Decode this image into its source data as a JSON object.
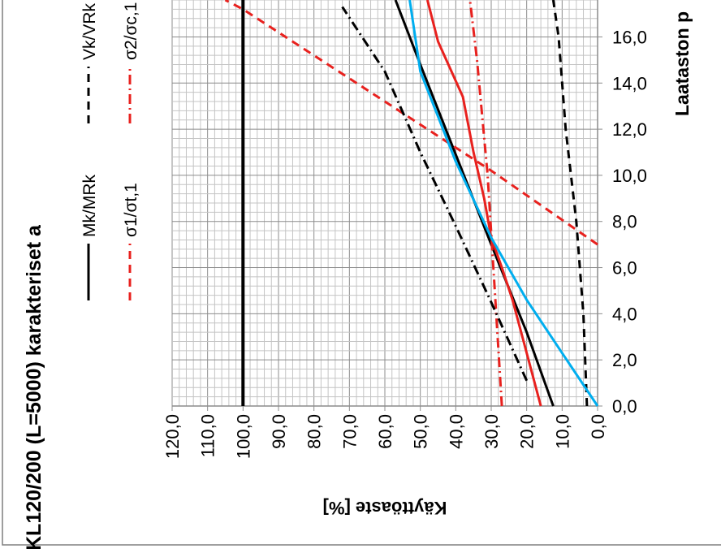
{
  "chart_data": {
    "type": "line",
    "orientation": "rotated-90-clockwise",
    "title": "KL120/200 (L=5000) karakteriset a",
    "xlabel": "Käyttöaste [%]",
    "ylabel": "Laataston p",
    "xlim": [
      0,
      120
    ],
    "ylim": [
      0,
      17.6
    ],
    "x_ticks": [
      "0,0",
      "10,0",
      "20,0",
      "30,0",
      "40,0",
      "50,0",
      "60,0",
      "70,0",
      "80,0",
      "90,0",
      "100,0",
      "110,0",
      "120,0"
    ],
    "y_ticks": [
      "0,0",
      "2,0",
      "4,0",
      "6,0",
      "8,0",
      "10,0",
      "12,0",
      "14,0",
      "16,0"
    ],
    "x_minor_step": 2,
    "y_minor_step": 0.4,
    "grid": true,
    "legend_position": "left",
    "series": [
      {
        "name": "Mk/MRk",
        "color": "#000000",
        "dash": "solid",
        "points": [
          [
            12.5,
            0
          ],
          [
            20,
            3.2
          ],
          [
            30,
            7
          ],
          [
            40,
            10.9
          ],
          [
            50,
            14.8
          ],
          [
            57,
            17.6
          ]
        ]
      },
      {
        "name": "Vk/VRk",
        "color": "#000000",
        "dash": "dash",
        "points": [
          [
            3,
            0
          ],
          [
            4,
            4
          ],
          [
            6,
            8
          ],
          [
            9,
            12
          ],
          [
            11,
            16
          ],
          [
            12.5,
            17.6
          ]
        ]
      },
      {
        "name": "σ1/σt,1",
        "color": "#e8211e",
        "dash": "dash",
        "points": [
          [
            0,
            7
          ],
          [
            30,
            10.2
          ],
          [
            60,
            13.2
          ],
          [
            100,
            17.2
          ],
          [
            105,
            17.6
          ]
        ]
      },
      {
        "name": "σ2/σc,1",
        "color": "#e8211e",
        "dash": "dashdot",
        "points": [
          [
            27,
            0
          ],
          [
            29,
            5
          ],
          [
            31,
            10
          ],
          [
            34,
            15
          ],
          [
            36,
            17.6
          ]
        ]
      },
      {
        "name": "",
        "color": "#000000",
        "dash": "dashdot",
        "points": [
          [
            20,
            1.1
          ],
          [
            30,
            4.5
          ],
          [
            40,
            7.8
          ],
          [
            50,
            11
          ],
          [
            60,
            14.5
          ],
          [
            72,
            17.3
          ]
        ]
      },
      {
        "name": "",
        "color": "#e8211e",
        "dash": "solid",
        "points": [
          [
            16,
            0
          ],
          [
            20,
            2.3
          ],
          [
            24,
            4.6
          ],
          [
            27,
            6
          ],
          [
            30,
            7.3
          ],
          [
            32,
            9
          ],
          [
            35,
            11
          ],
          [
            38,
            13.4
          ],
          [
            45,
            15.8
          ],
          [
            48,
            17.6
          ]
        ]
      },
      {
        "name": "",
        "color": "#00aeef",
        "dash": "solid",
        "points": [
          [
            0,
            0
          ],
          [
            10,
            2.3
          ],
          [
            20,
            4.6
          ],
          [
            30,
            7.3
          ],
          [
            40,
            10.6
          ],
          [
            50,
            14.5
          ],
          [
            53,
            17.6
          ]
        ]
      },
      {
        "name": "",
        "color": "#000000",
        "dash": "solid",
        "width": "thick",
        "points": [
          [
            100,
            0
          ],
          [
            100,
            17.6
          ]
        ]
      }
    ]
  }
}
